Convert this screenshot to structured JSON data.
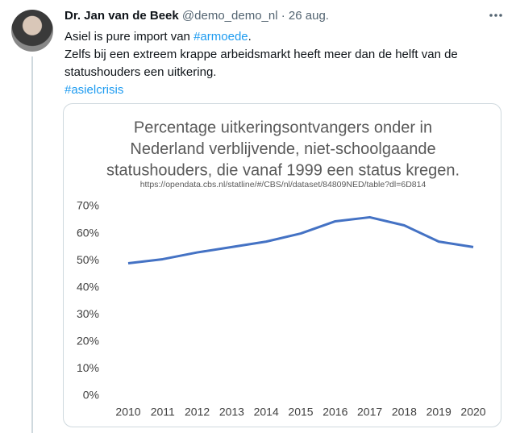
{
  "tweet": {
    "author": "Dr. Jan van de Beek",
    "handle": "@demo_demo_nl",
    "separator": "·",
    "date": "26 aug.",
    "text_1": "Asiel is pure import van",
    "hashtag_1": "#armoede",
    "text_1_end": ".",
    "text_2": "Zelfs bij een extreem krappe arbeidsmarkt heeft meer dan de helft van de statushouders een uitkering.",
    "hashtag_2": "#asielcrisis"
  },
  "chart_data": {
    "type": "line",
    "title": [
      "Percentage uitkeringsontvangers onder in",
      "Nederland verblijvende, niet-schoolgaande",
      "statushouders, die vanaf 1999 een status kregen."
    ],
    "subtitle": "https://opendata.cbs.nl/statline/#/CBS/nl/dataset/84809NED/table?dl=6D814",
    "categories": [
      "2010",
      "2011",
      "2012",
      "2013",
      "2014",
      "2015",
      "2016",
      "2017",
      "2018",
      "2019",
      "2020"
    ],
    "values": [
      49,
      50.5,
      53,
      55,
      57,
      60,
      64.5,
      66,
      63,
      57,
      55
    ],
    "color": "#4472c4",
    "ylim": [
      0,
      70
    ],
    "yticks": [
      {
        "value": 0,
        "label": "0%"
      },
      {
        "value": 10,
        "label": "10%"
      },
      {
        "value": 20,
        "label": "20%"
      },
      {
        "value": 30,
        "label": "30%"
      },
      {
        "value": 40,
        "label": "40%"
      },
      {
        "value": 50,
        "label": "50%"
      },
      {
        "value": 60,
        "label": "60%"
      },
      {
        "value": 70,
        "label": "70%"
      }
    ],
    "grid": false
  }
}
